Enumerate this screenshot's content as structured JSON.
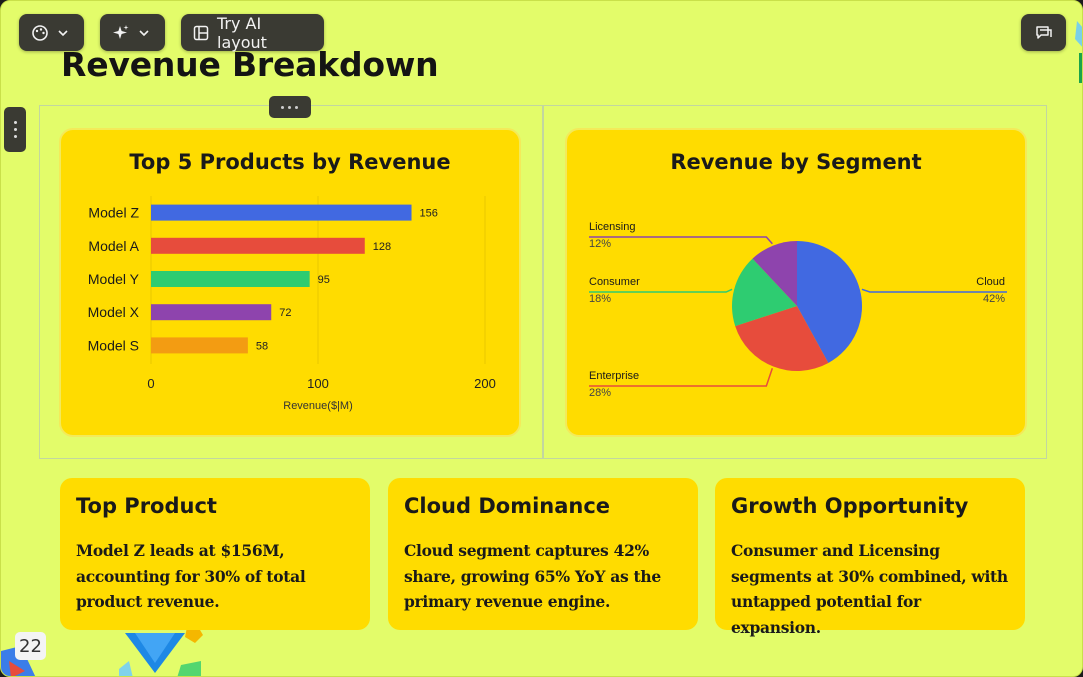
{
  "toolbar": {
    "theme_icon": "palette-icon",
    "ai_icon": "sparkle-icon",
    "layout_label": "Try AI layout",
    "comment_icon": "comment-icon"
  },
  "slide": {
    "title": "Revenue Breakdown",
    "page_number": "22"
  },
  "chart_data": [
    {
      "type": "bar",
      "orientation": "horizontal",
      "title": "Top 5 Products by Revenue",
      "categories": [
        "Model Z",
        "Model A",
        "Model Y",
        "Model X",
        "Model S"
      ],
      "values": [
        156,
        128,
        95,
        72,
        58
      ],
      "colors": [
        "#4169e1",
        "#e74c3c",
        "#2ecc71",
        "#8e44ad",
        "#f39c12"
      ],
      "xlabel": "Revenue($|M)",
      "ylabel": "",
      "xlim": [
        0,
        200
      ],
      "xticks": [
        0,
        100,
        200
      ],
      "grid": true
    },
    {
      "type": "pie",
      "title": "Revenue by Segment",
      "labels": [
        "Cloud",
        "Enterprise",
        "Consumer",
        "Licensing"
      ],
      "values": [
        42,
        28,
        18,
        12
      ],
      "value_labels": [
        "42%",
        "28%",
        "18%",
        "12%"
      ],
      "colors": [
        "#4169e1",
        "#e74c3c",
        "#2ecc71",
        "#8e44ad"
      ]
    }
  ],
  "insights": [
    {
      "title": "Top Product",
      "body": "Model Z leads at $156M, accounting for 30% of total product revenue."
    },
    {
      "title": "Cloud Dominance",
      "body": "Cloud segment captures 42% share, growing 65% YoY as the primary revenue engine."
    },
    {
      "title": "Growth Opportunity",
      "body": "Consumer and Licensing segments at 30% combined, with untapped potential for expansion."
    }
  ],
  "colors": {
    "slide_bg": "#e3fc6a",
    "card_bg": "#ffdc00",
    "toolbar_bg": "#3a3a33"
  }
}
